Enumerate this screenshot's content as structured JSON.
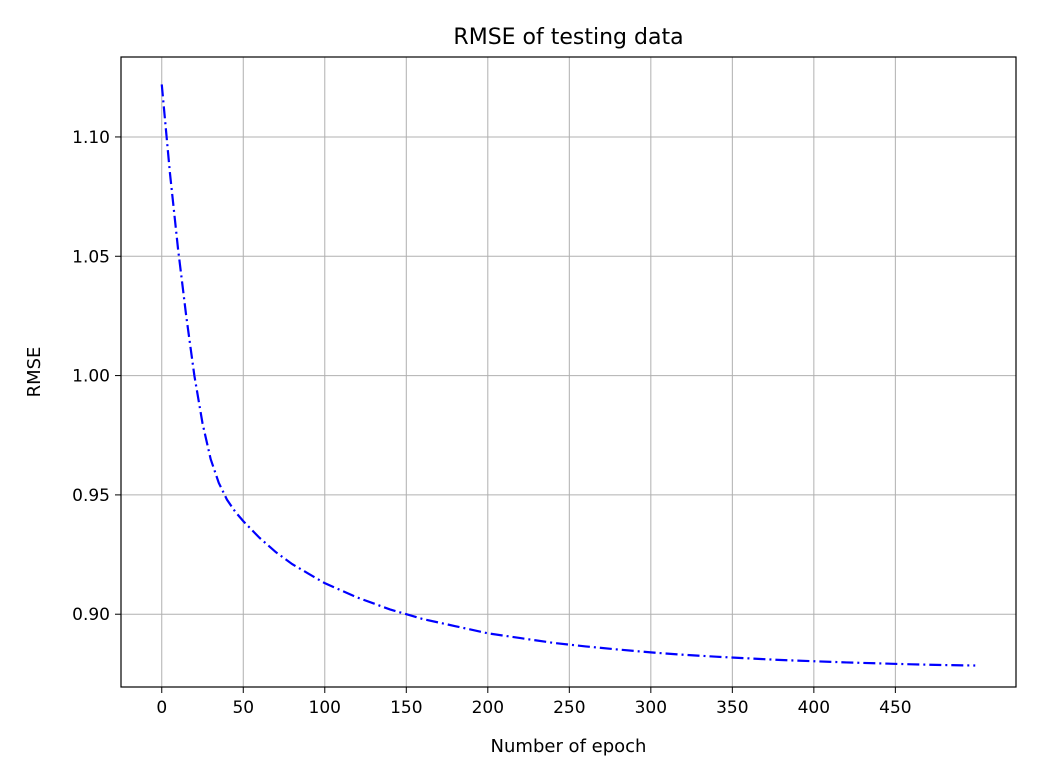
{
  "chart_data": {
    "type": "line",
    "title": "RMSE of testing data",
    "xlabel": "Number of epoch",
    "ylabel": "RMSE",
    "xlim": [
      -25,
      524
    ],
    "ylim": [
      0.8695,
      1.1335
    ],
    "xticks": [
      0,
      50,
      100,
      150,
      200,
      250,
      300,
      350,
      400,
      450
    ],
    "yticks": [
      0.9,
      0.95,
      1.0,
      1.05,
      1.1
    ],
    "xtick_labels": [
      "0",
      "50",
      "100",
      "150",
      "200",
      "250",
      "300",
      "350",
      "400",
      "450"
    ],
    "ytick_labels": [
      "0.90",
      "0.95",
      "1.00",
      "1.05",
      "1.10"
    ],
    "grid": true,
    "series": [
      {
        "color": "#0000ff",
        "linestyle": "dash-dot",
        "x": [
          0,
          5,
          10,
          15,
          20,
          25,
          30,
          35,
          40,
          45,
          50,
          60,
          70,
          80,
          90,
          100,
          120,
          140,
          160,
          180,
          200,
          220,
          240,
          260,
          280,
          300,
          320,
          340,
          360,
          380,
          400,
          420,
          440,
          460,
          480,
          499
        ],
        "y": [
          1.122,
          1.085,
          1.053,
          1.025,
          1.0,
          0.98,
          0.965,
          0.955,
          0.948,
          0.943,
          0.939,
          0.932,
          0.926,
          0.921,
          0.917,
          0.913,
          0.907,
          0.902,
          0.898,
          0.895,
          0.892,
          0.89,
          0.888,
          0.8865,
          0.8852,
          0.884,
          0.883,
          0.8822,
          0.8815,
          0.8808,
          0.8803,
          0.8798,
          0.8794,
          0.879,
          0.8787,
          0.8785
        ]
      }
    ]
  }
}
